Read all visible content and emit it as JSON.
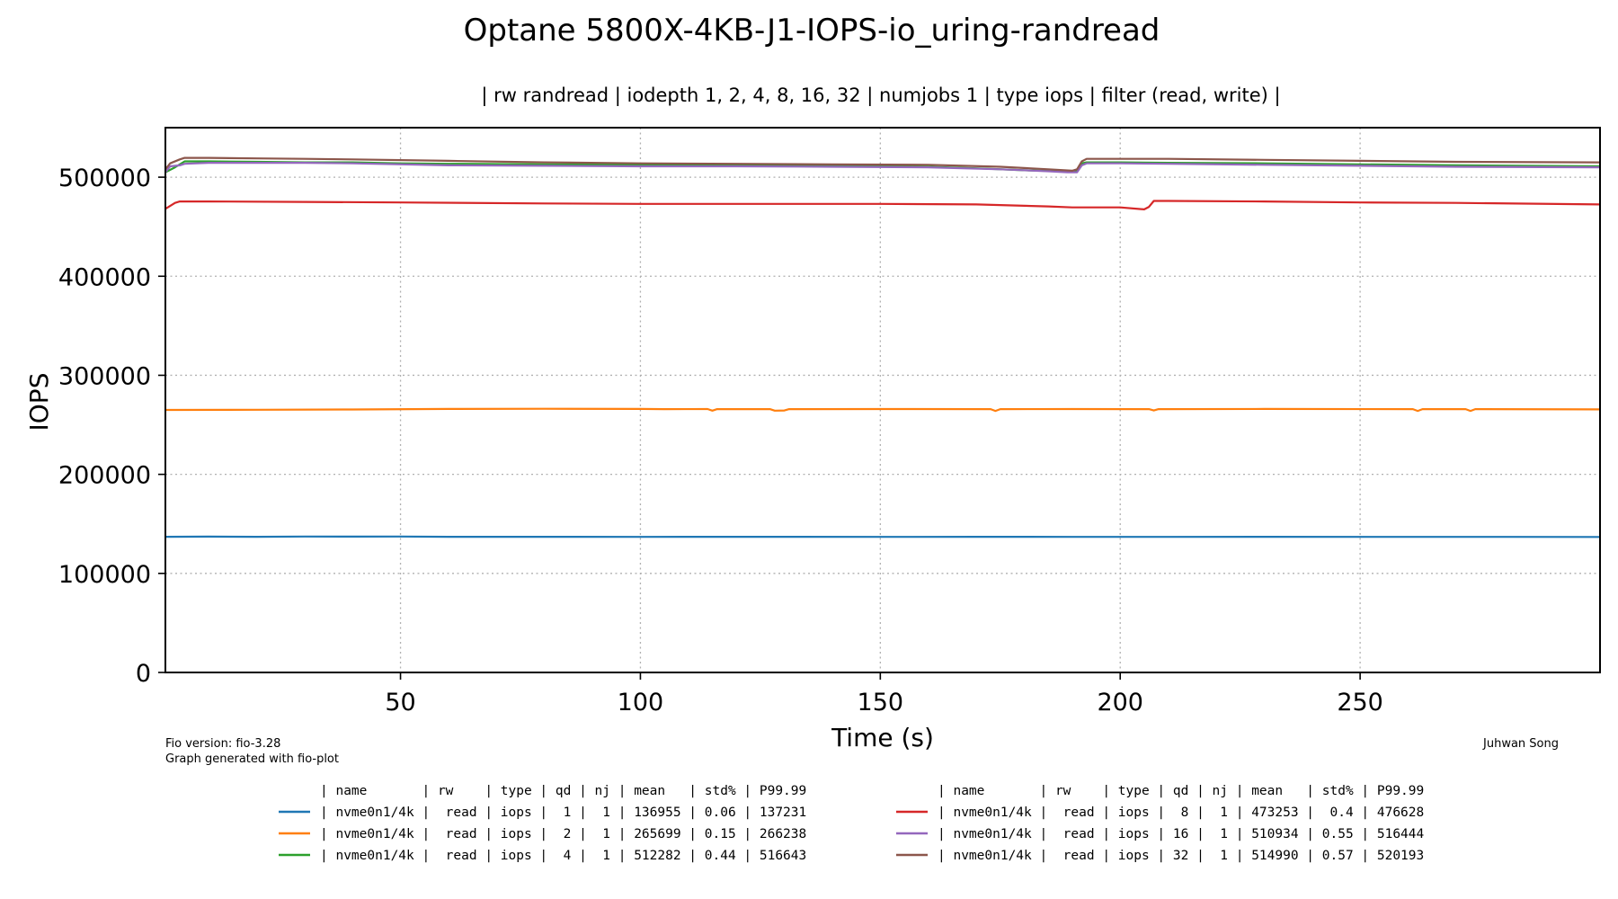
{
  "footer": {
    "fio_version": "Fio version: fio-3.28",
    "generated_with": "Graph generated with fio-plot",
    "author": "Juhwan Song"
  },
  "legend": {
    "header": "| name       | rw    | type | qd | nj | mean   | std% | P99.99",
    "rows": [
      "| nvme0n1/4k |  read | iops |  1 |  1 | 136955 | 0.06 | 137231",
      "| nvme0n1/4k |  read | iops |  2 |  1 | 265699 | 0.15 | 266238",
      "| nvme0n1/4k |  read | iops |  4 |  1 | 512282 | 0.44 | 516643",
      "| nvme0n1/4k |  read | iops |  8 |  1 | 473253 |  0.4 | 476628",
      "| nvme0n1/4k |  read | iops | 16 |  1 | 510934 | 0.55 | 516444",
      "| nvme0n1/4k |  read | iops | 32 |  1 | 514990 | 0.57 | 520193"
    ]
  },
  "chart_data": {
    "type": "line",
    "title": "Optane 5800X-4KB-J1-IOPS-io_uring-randread",
    "subtitle": "| rw randread | iodepth 1, 2, 4, 8, 16, 32 | numjobs 1 | type iops | filter (read, write) |",
    "xlabel": "Time (s)",
    "ylabel": "IOPS",
    "xlim": [
      1,
      300
    ],
    "ylim": [
      0,
      550000
    ],
    "xticks": [
      50,
      100,
      150,
      200,
      250
    ],
    "yticks": [
      0,
      100000,
      200000,
      300000,
      400000,
      500000
    ],
    "grid": true,
    "legend_position": "bottom",
    "series": [
      {
        "iodepth": 1,
        "color": "#1f77b4",
        "x": [
          1,
          10,
          20,
          30,
          40,
          50,
          60,
          80,
          100,
          120,
          150,
          170,
          190,
          210,
          230,
          260,
          280,
          300
        ],
        "y": [
          137000,
          137100,
          137000,
          137200,
          137100,
          137200,
          137000,
          137000,
          136900,
          137000,
          136900,
          137000,
          136900,
          136900,
          137000,
          136900,
          136900,
          136800
        ]
      },
      {
        "iodepth": 2,
        "color": "#ff7f0e",
        "x": [
          1,
          20,
          40,
          60,
          80,
          100,
          105,
          114,
          115,
          116,
          127,
          128,
          130,
          131,
          150,
          173,
          174,
          175,
          190,
          206,
          207,
          208,
          230,
          261,
          262,
          263,
          272,
          273,
          274,
          300
        ],
        "y": [
          265000,
          265200,
          265500,
          266000,
          266200,
          266000,
          265800,
          265900,
          264300,
          265800,
          265800,
          264300,
          264500,
          265800,
          265900,
          265800,
          264000,
          265800,
          265900,
          265800,
          264500,
          265800,
          266000,
          265800,
          264000,
          265800,
          265800,
          264000,
          265800,
          265600
        ]
      },
      {
        "iodepth": 4,
        "color": "#2ca02c",
        "x": [
          1,
          3,
          5,
          10,
          20,
          30,
          40,
          50,
          60,
          80,
          100,
          110,
          130,
          150,
          160,
          170,
          180,
          188,
          191,
          192,
          193,
          200,
          210,
          230,
          250,
          270,
          300
        ],
        "y": [
          505000,
          510000,
          516000,
          516000,
          515500,
          515000,
          515000,
          514000,
          513500,
          513000,
          512500,
          512500,
          512000,
          511500,
          510500,
          509000,
          507000,
          506000,
          506000,
          514000,
          515000,
          515000,
          514500,
          514000,
          513000,
          512000,
          511000
        ]
      },
      {
        "iodepth": 8,
        "color": "#d62728",
        "x": [
          1,
          3,
          4,
          10,
          30,
          50,
          80,
          100,
          130,
          150,
          170,
          185,
          190,
          200,
          205,
          206,
          207,
          210,
          230,
          250,
          270,
          300
        ],
        "y": [
          468000,
          474000,
          475500,
          475500,
          475000,
          474500,
          473500,
          473000,
          473000,
          473000,
          472500,
          470500,
          469500,
          469500,
          467500,
          470000,
          476000,
          476000,
          475500,
          474500,
          474000,
          472500
        ]
      },
      {
        "iodepth": 16,
        "color": "#9467bd",
        "x": [
          1,
          2,
          4,
          5,
          10,
          20,
          30,
          40,
          60,
          80,
          100,
          120,
          140,
          160,
          175,
          185,
          189,
          191,
          192,
          193,
          200,
          210,
          230,
          250,
          270,
          300
        ],
        "y": [
          505000,
          511000,
          512000,
          513500,
          514500,
          514500,
          514500,
          514000,
          512000,
          511500,
          511000,
          511000,
          510500,
          510000,
          508000,
          506000,
          505000,
          505000,
          512000,
          514000,
          514000,
          513500,
          512500,
          511500,
          510500,
          510000
        ]
      },
      {
        "iodepth": 32,
        "color": "#8c564b",
        "x": [
          1,
          2,
          4,
          5,
          10,
          20,
          30,
          40,
          60,
          80,
          100,
          120,
          140,
          160,
          175,
          185,
          190,
          191,
          192,
          193,
          200,
          210,
          230,
          250,
          270,
          300
        ],
        "y": [
          508000,
          514000,
          518000,
          519500,
          519500,
          519000,
          518500,
          518000,
          516500,
          515000,
          514000,
          513500,
          513000,
          512500,
          510500,
          508000,
          506500,
          508000,
          516000,
          518500,
          518500,
          518500,
          517500,
          516500,
          515500,
          515000
        ]
      }
    ]
  }
}
